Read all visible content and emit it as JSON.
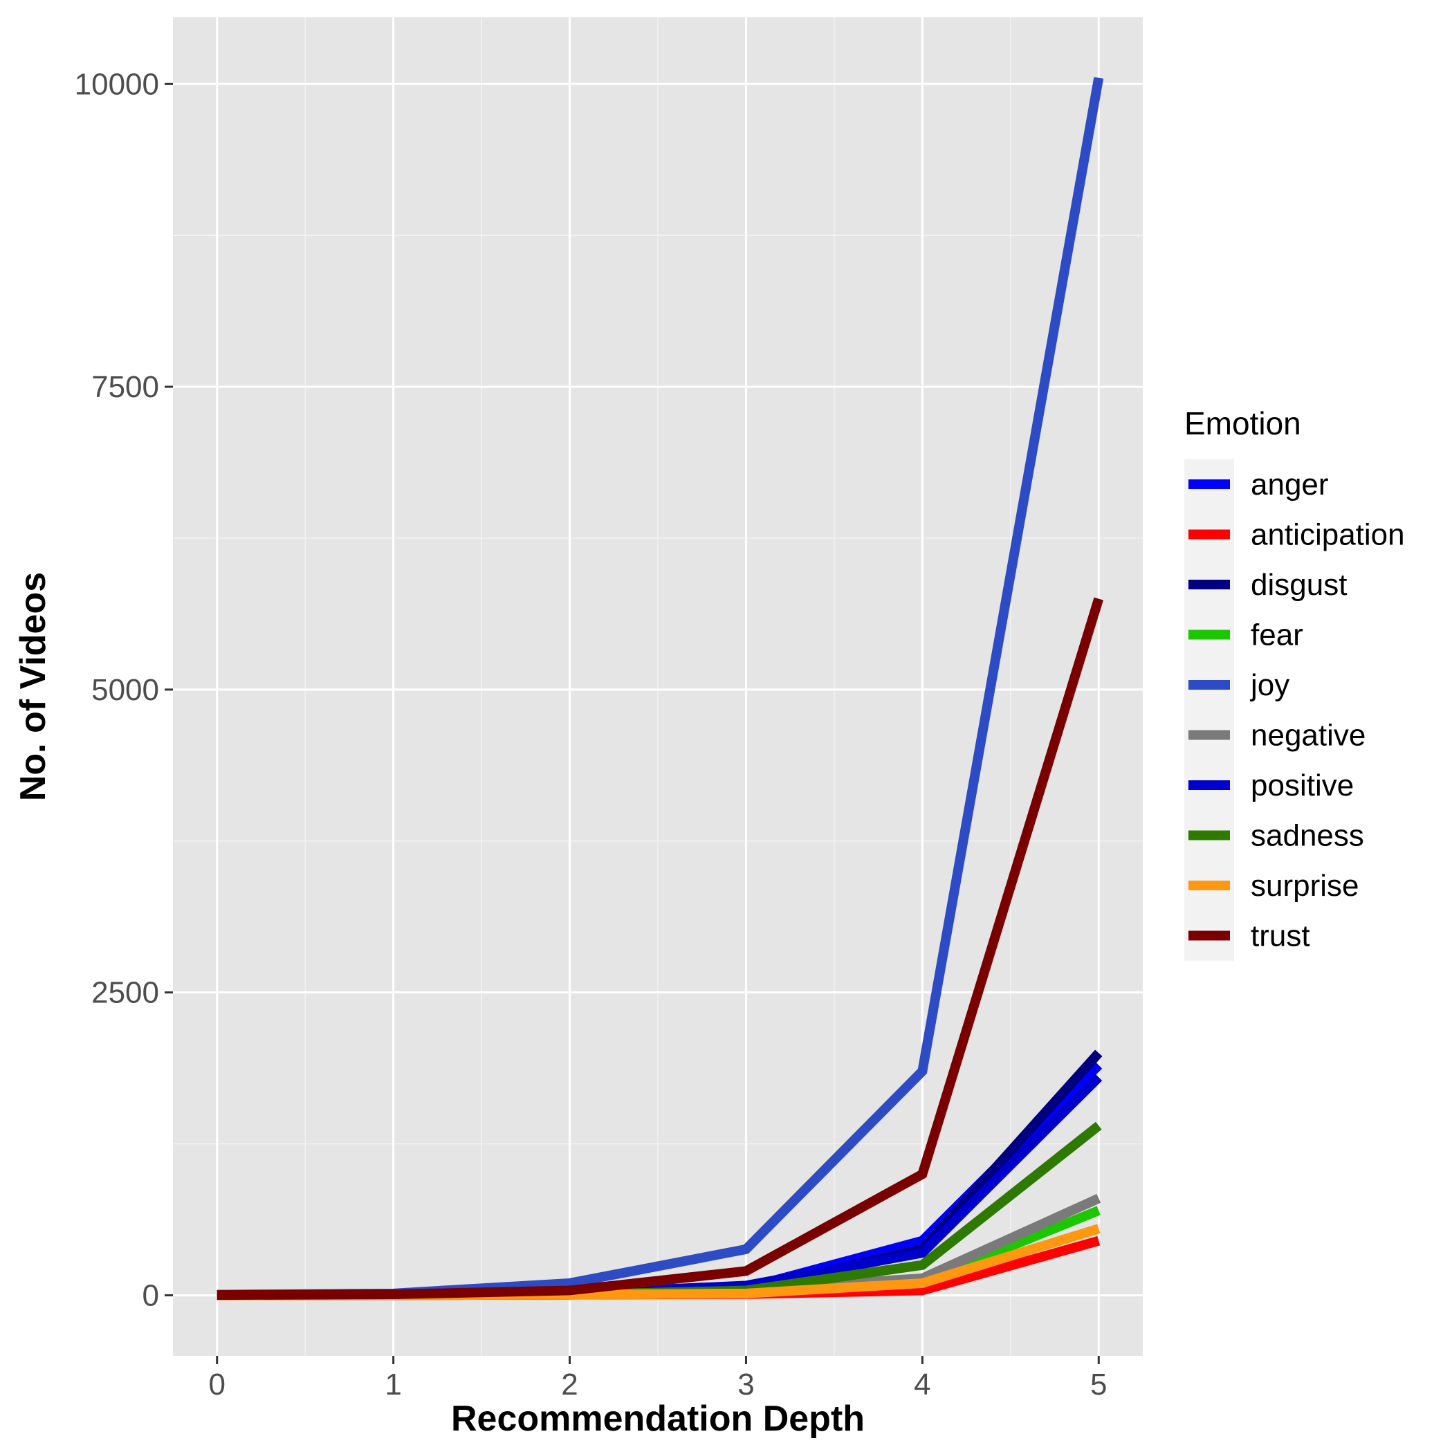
{
  "chart_data": {
    "type": "line",
    "title": "",
    "xlabel": "Recommendation Depth",
    "ylabel": "No. of Videos",
    "x": [
      0,
      1,
      2,
      3,
      4,
      5
    ],
    "xlim": [
      -0.25,
      5.25
    ],
    "ylim": [
      -500,
      10550
    ],
    "xticks": [
      0,
      1,
      2,
      3,
      4,
      5
    ],
    "yticks": [
      0,
      2500,
      5000,
      7500,
      10000
    ],
    "xtick_labels": [
      "0",
      "1",
      "2",
      "3",
      "4",
      "5"
    ],
    "ytick_labels": [
      "0",
      "2500",
      "5000",
      "7500",
      "10000"
    ],
    "grid": true,
    "legend_title": "Emotion",
    "legend_position": "right",
    "series": [
      {
        "name": "anger",
        "color": "#0000FF",
        "values": [
          0,
          2,
          10,
          60,
          450,
          1900
        ]
      },
      {
        "name": "anticipation",
        "color": "#FF0000",
        "values": [
          0,
          1,
          5,
          10,
          40,
          450
        ]
      },
      {
        "name": "disgust",
        "color": "#000080",
        "values": [
          0,
          2,
          10,
          50,
          380,
          2000
        ]
      },
      {
        "name": "fear",
        "color": "#1CC700",
        "values": [
          0,
          1,
          5,
          20,
          110,
          700
        ]
      },
      {
        "name": "joy",
        "color": "#2E4BC6",
        "values": [
          5,
          15,
          100,
          380,
          1850,
          10050
        ]
      },
      {
        "name": "negative",
        "color": "#7A7A7A",
        "values": [
          0,
          2,
          10,
          50,
          140,
          800
        ]
      },
      {
        "name": "positive",
        "color": "#0000CC",
        "values": [
          0,
          2,
          15,
          80,
          350,
          1800
        ]
      },
      {
        "name": "sadness",
        "color": "#2E7A00",
        "values": [
          0,
          1,
          5,
          40,
          250,
          1400
        ]
      },
      {
        "name": "surprise",
        "color": "#FF9811",
        "values": [
          0,
          1,
          5,
          15,
          100,
          550
        ]
      },
      {
        "name": "trust",
        "color": "#7A0000",
        "values": [
          2,
          8,
          40,
          200,
          1000,
          5750
        ]
      }
    ]
  }
}
